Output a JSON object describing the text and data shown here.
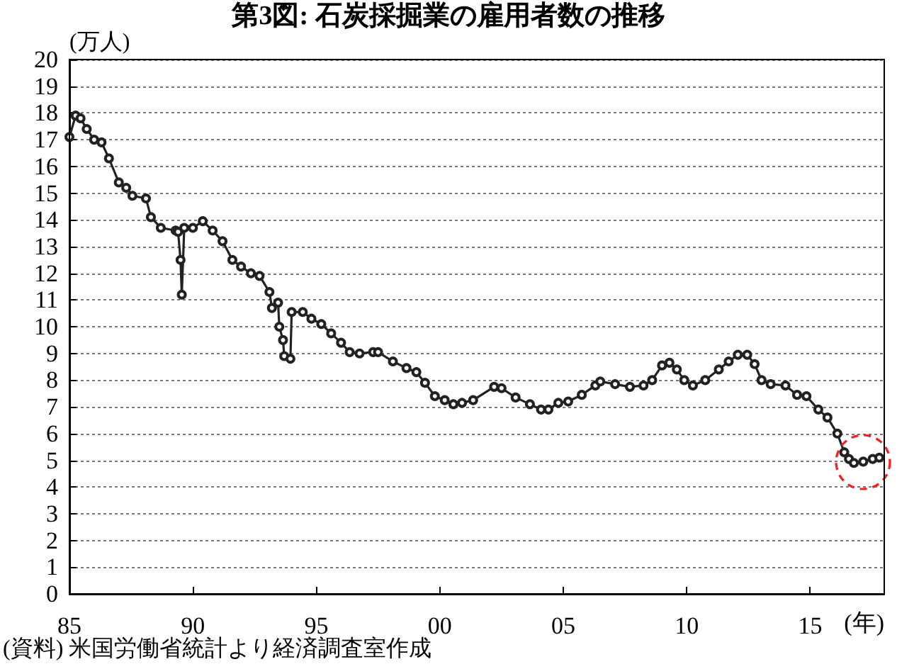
{
  "chart_data": {
    "type": "line",
    "title": "第3図: 石炭採掘業の雇用者数の推移",
    "ylabel": "(万人)",
    "xlabel": "(年)",
    "annotations": [
      "(資料) 米国労働省統計より経済調査室作成"
    ],
    "series": [
      {
        "color": "#222222",
        "x": [
          1985.0,
          1985.25,
          1985.45,
          1985.7,
          1986.0,
          1986.3,
          1986.6,
          1987.0,
          1987.3,
          1987.55,
          1988.1,
          1988.3,
          1988.7,
          1989.3,
          1989.4,
          1989.5,
          1989.55,
          1989.65,
          1990.0,
          1990.4,
          1990.8,
          1991.2,
          1991.6,
          1991.95,
          1992.35,
          1992.7,
          1993.1,
          1993.2,
          1993.45,
          1993.5,
          1993.65,
          1993.7,
          1993.95,
          1994.0,
          1994.45,
          1994.8,
          1995.2,
          1995.6,
          1996.0,
          1996.35,
          1996.75,
          1997.3,
          1997.5,
          1998.1,
          1998.65,
          1999.05,
          1999.4,
          1999.8,
          2000.2,
          2000.55,
          2000.9,
          2001.35,
          2002.2,
          2002.5,
          2003.07,
          2003.65,
          2004.1,
          2004.4,
          2004.8,
          2005.2,
          2005.75,
          2006.3,
          2006.5,
          2007.1,
          2007.7,
          2008.25,
          2008.6,
          2009.0,
          2009.3,
          2009.6,
          2009.9,
          2010.25,
          2010.75,
          2011.3,
          2011.7,
          2012.07,
          2012.45,
          2012.75,
          2013.03,
          2013.4,
          2014.0,
          2014.47,
          2014.85,
          2015.33,
          2015.7,
          2016.1,
          2016.38,
          2016.57,
          2016.77,
          2017.15,
          2017.53,
          2017.8
        ],
        "values": [
          17.1,
          17.9,
          17.8,
          17.4,
          17.0,
          16.9,
          16.3,
          15.4,
          15.2,
          14.9,
          14.8,
          14.1,
          13.7,
          13.6,
          13.55,
          12.5,
          11.2,
          13.7,
          13.7,
          13.95,
          13.6,
          13.2,
          12.5,
          12.25,
          12.0,
          11.9,
          11.3,
          10.7,
          10.9,
          10.0,
          9.5,
          8.9,
          8.8,
          10.55,
          10.55,
          10.3,
          10.1,
          9.75,
          9.4,
          9.05,
          9.0,
          9.05,
          9.05,
          8.7,
          8.45,
          8.3,
          7.9,
          7.4,
          7.25,
          7.1,
          7.15,
          7.25,
          7.75,
          7.7,
          7.35,
          7.1,
          6.9,
          6.9,
          7.15,
          7.2,
          7.45,
          7.8,
          7.95,
          7.85,
          7.75,
          7.8,
          8.0,
          8.55,
          8.65,
          8.4,
          8.0,
          7.8,
          8.0,
          8.4,
          8.7,
          8.95,
          8.95,
          8.6,
          8.0,
          7.85,
          7.8,
          7.45,
          7.4,
          6.9,
          6.6,
          6.0,
          5.3,
          5.05,
          4.9,
          4.95,
          5.05,
          5.1
        ]
      }
    ],
    "xlim": [
      1985,
      2018
    ],
    "xticks": [
      {
        "value": 1985,
        "label": "85"
      },
      {
        "value": 1990,
        "label": "90"
      },
      {
        "value": 1995,
        "label": "95"
      },
      {
        "value": 2000,
        "label": "00"
      },
      {
        "value": 2005,
        "label": "05"
      },
      {
        "value": 2010,
        "label": "10"
      },
      {
        "value": 2015,
        "label": "15"
      }
    ],
    "ylim": [
      0,
      20
    ],
    "yticks": [
      0,
      1,
      2,
      3,
      4,
      5,
      6,
      7,
      8,
      9,
      10,
      11,
      12,
      13,
      14,
      15,
      16,
      17,
      18,
      19,
      20
    ],
    "grid": "y",
    "marker": "circle",
    "line_style": "solid"
  }
}
